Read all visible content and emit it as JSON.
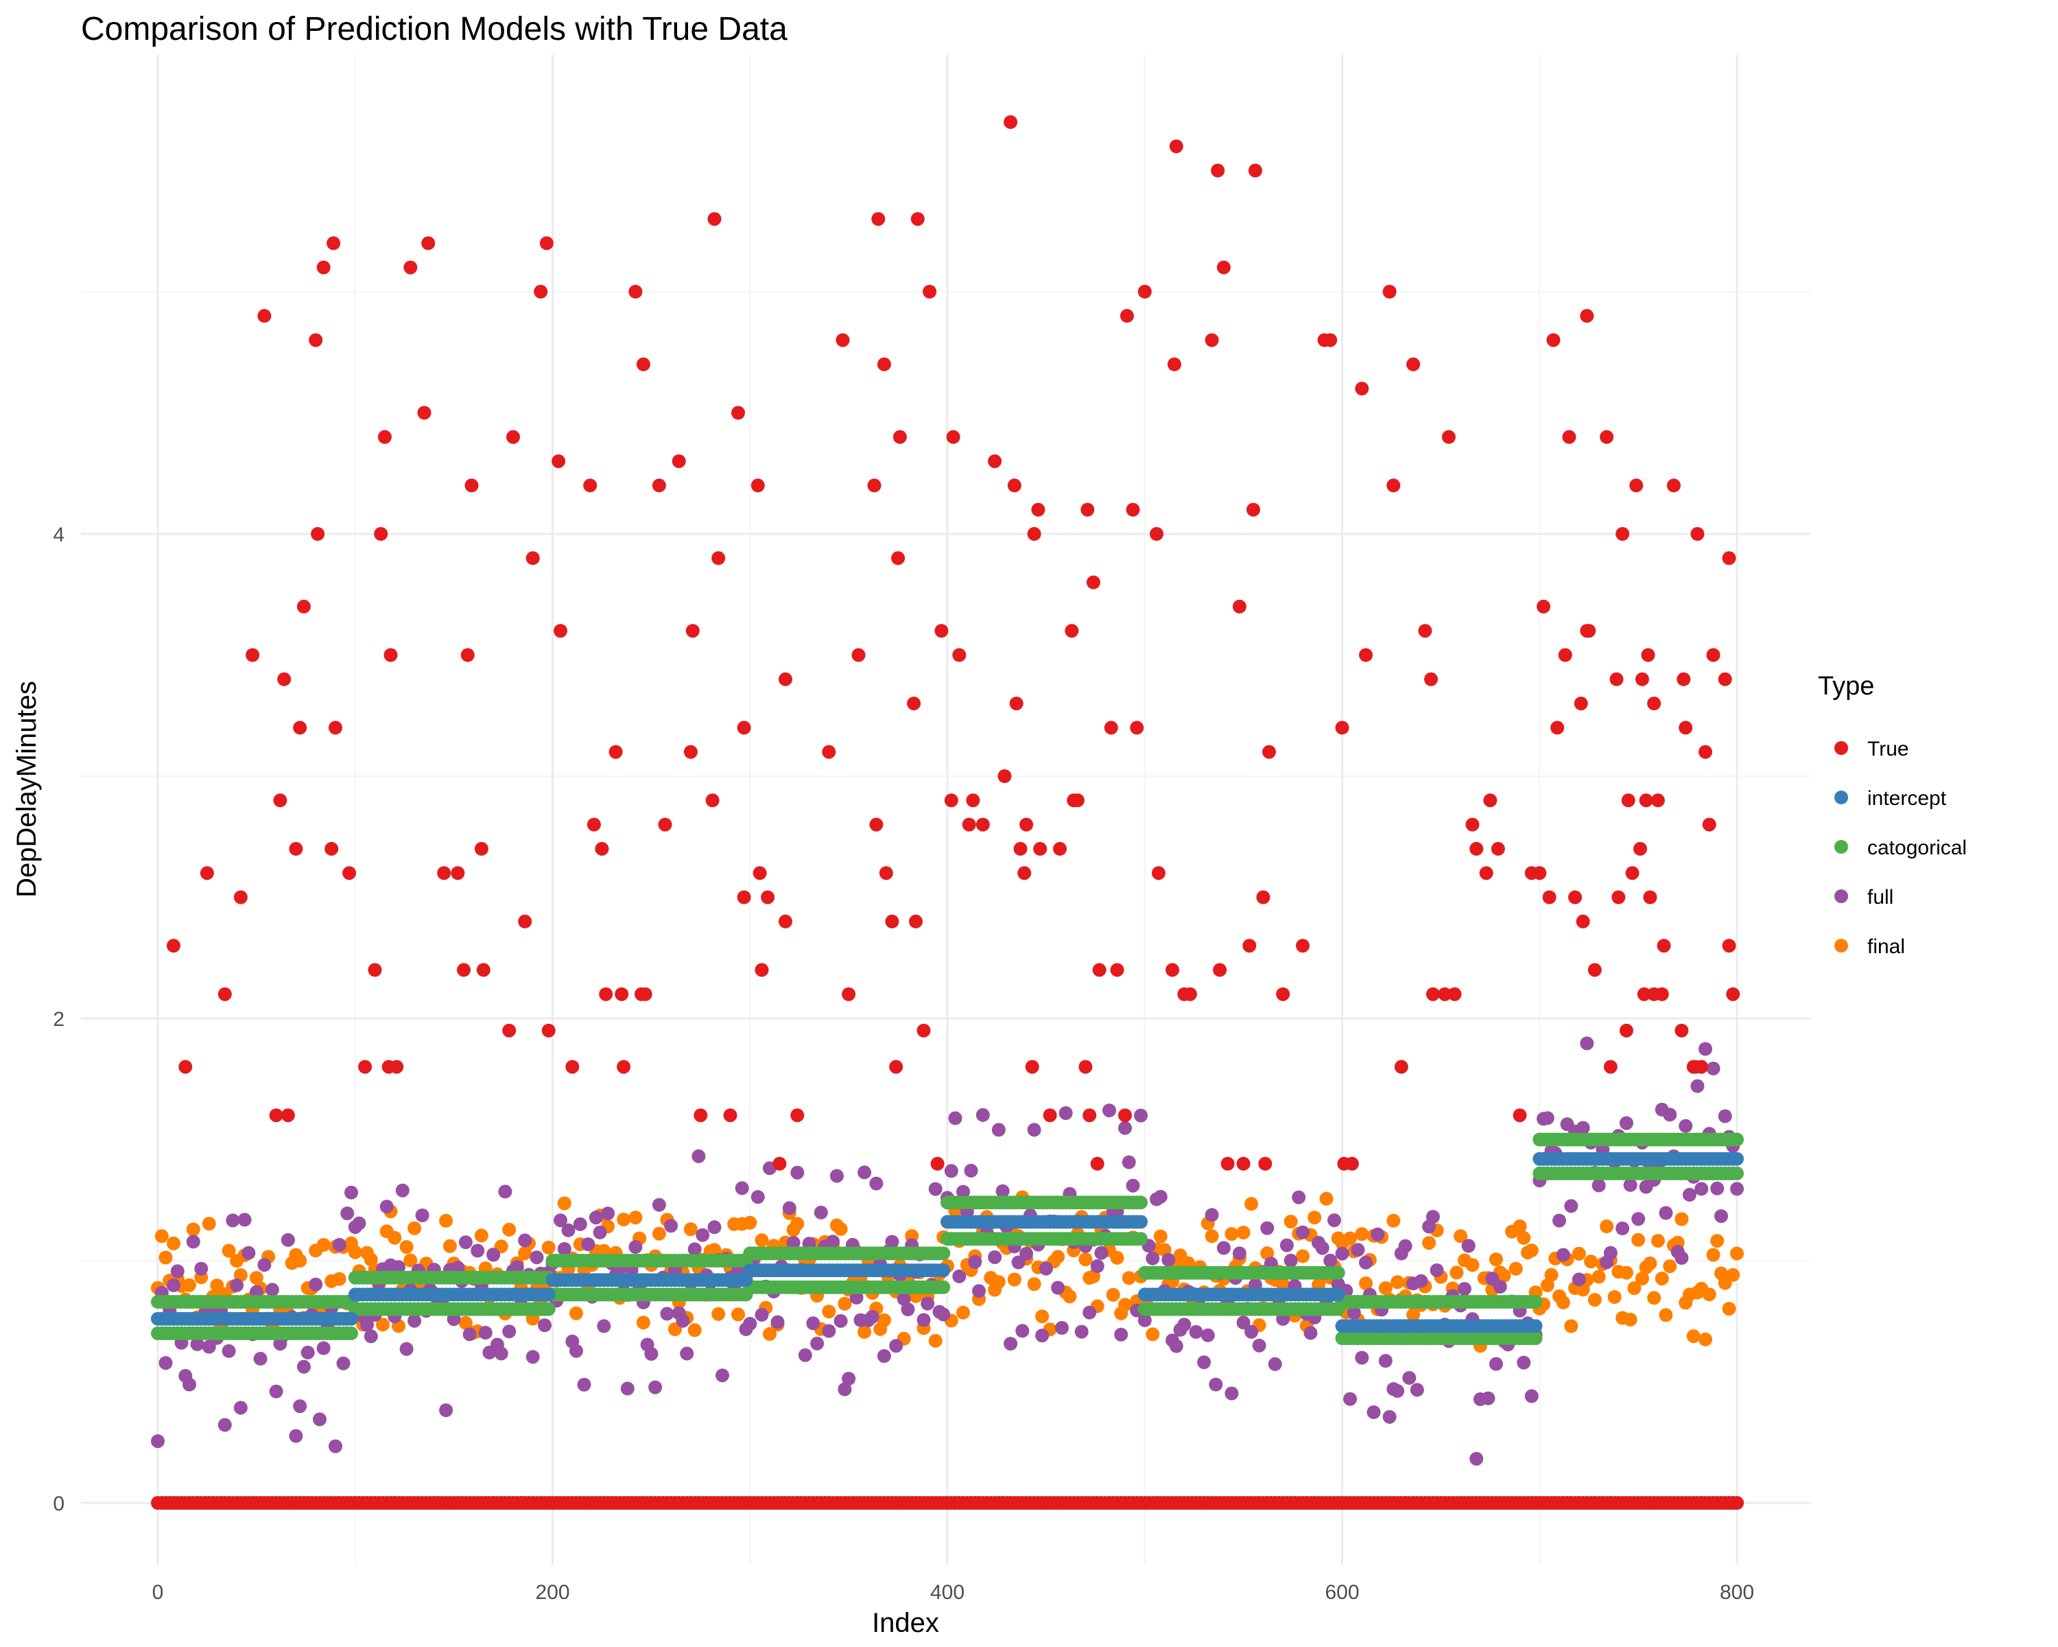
{
  "chart_data": {
    "type": "scatter",
    "title": "Comparison of Prediction Models with True Data",
    "xlabel": "Index",
    "ylabel": "DepDelayMinutes",
    "xlim": [
      -40,
      840
    ],
    "ylim": [
      -0.3,
      6.0
    ],
    "x_ticks": [
      0,
      200,
      400,
      600,
      800
    ],
    "y_ticks": [
      0,
      2,
      4
    ],
    "grid": true,
    "legend": {
      "title": "Type",
      "position": "right",
      "entries": [
        {
          "name": "True",
          "color": "#E41A1C"
        },
        {
          "name": "intercept",
          "color": "#377EB8"
        },
        {
          "name": "catogorical",
          "color": "#4DAF4A"
        },
        {
          "name": "full",
          "color": "#984EA3"
        },
        {
          "name": "final",
          "color": "#FF7F00"
        }
      ]
    },
    "series": [
      {
        "name": "True",
        "color": "#E41A1C",
        "zero_baseline": {
          "value": 0,
          "x_range": [
            0,
            800
          ],
          "step": 2
        },
        "points": [
          [
            8,
            2.3
          ],
          [
            14,
            1.8
          ],
          [
            25,
            2.6
          ],
          [
            34,
            2.1
          ],
          [
            42,
            2.5
          ],
          [
            48,
            3.5
          ],
          [
            54,
            4.9
          ],
          [
            60,
            1.6
          ],
          [
            62,
            2.9
          ],
          [
            64,
            3.4
          ],
          [
            66,
            1.6
          ],
          [
            70,
            2.7
          ],
          [
            72,
            3.2
          ],
          [
            74,
            3.7
          ],
          [
            80,
            4.8
          ],
          [
            81,
            4.0
          ],
          [
            84,
            5.1
          ],
          [
            88,
            2.7
          ],
          [
            89,
            5.2
          ],
          [
            90,
            3.2
          ],
          [
            97,
            2.6
          ],
          [
            105,
            1.8
          ],
          [
            110,
            2.2
          ],
          [
            113,
            4.0
          ],
          [
            115,
            4.4
          ],
          [
            117,
            1.8
          ],
          [
            118,
            3.5
          ],
          [
            121,
            1.8
          ],
          [
            128,
            5.1
          ],
          [
            135,
            4.5
          ],
          [
            137,
            5.2
          ],
          [
            145,
            2.6
          ],
          [
            152,
            2.6
          ],
          [
            155,
            2.2
          ],
          [
            157,
            3.5
          ],
          [
            159,
            4.2
          ],
          [
            164,
            2.7
          ],
          [
            165,
            2.2
          ],
          [
            178,
            1.95
          ],
          [
            180,
            4.4
          ],
          [
            186,
            2.4
          ],
          [
            190,
            3.9
          ],
          [
            194,
            5.0
          ],
          [
            197,
            5.2
          ],
          [
            198,
            1.95
          ],
          [
            203,
            4.3
          ],
          [
            204,
            3.6
          ],
          [
            210,
            1.8
          ],
          [
            219,
            4.2
          ],
          [
            221,
            2.8
          ],
          [
            225,
            2.7
          ],
          [
            227,
            2.1
          ],
          [
            232,
            3.1
          ],
          [
            235,
            2.1
          ],
          [
            236,
            1.8
          ],
          [
            242,
            5.0
          ],
          [
            245,
            2.1
          ],
          [
            246,
            4.7
          ],
          [
            247,
            2.1
          ],
          [
            254,
            4.2
          ],
          [
            257,
            2.8
          ],
          [
            264,
            4.3
          ],
          [
            270,
            3.1
          ],
          [
            271,
            3.6
          ],
          [
            275,
            1.6
          ],
          [
            281,
            2.9
          ],
          [
            282,
            5.3
          ],
          [
            284,
            3.9
          ],
          [
            290,
            1.6
          ],
          [
            294,
            4.5
          ],
          [
            297,
            2.5
          ],
          [
            297,
            3.2
          ],
          [
            304,
            4.2
          ],
          [
            305,
            2.6
          ],
          [
            306,
            2.2
          ],
          [
            309,
            2.5
          ],
          [
            315,
            1.4
          ],
          [
            318,
            2.4
          ],
          [
            318,
            3.4
          ],
          [
            324,
            1.6
          ],
          [
            340,
            3.1
          ],
          [
            347,
            4.8
          ],
          [
            350,
            2.1
          ],
          [
            355,
            3.5
          ],
          [
            363,
            4.2
          ],
          [
            364,
            2.8
          ],
          [
            365,
            5.3
          ],
          [
            368,
            4.7
          ],
          [
            369,
            2.6
          ],
          [
            372,
            2.4
          ],
          [
            374,
            1.8
          ],
          [
            375,
            3.9
          ],
          [
            376,
            4.4
          ],
          [
            383,
            3.3
          ],
          [
            384,
            2.4
          ],
          [
            385,
            5.3
          ],
          [
            388,
            1.95
          ],
          [
            391,
            5.0
          ],
          [
            395,
            1.4
          ],
          [
            397,
            3.6
          ],
          [
            402,
            2.9
          ],
          [
            403,
            4.4
          ],
          [
            406,
            3.5
          ],
          [
            411,
            2.8
          ],
          [
            413,
            2.9
          ],
          [
            418,
            2.8
          ],
          [
            424,
            4.3
          ],
          [
            429,
            3.0
          ],
          [
            432,
            5.7
          ],
          [
            434,
            4.2
          ],
          [
            435,
            3.3
          ],
          [
            437,
            2.7
          ],
          [
            439,
            2.6
          ],
          [
            440,
            2.8
          ],
          [
            443,
            1.8
          ],
          [
            444,
            4.0
          ],
          [
            446,
            4.1
          ],
          [
            447,
            2.7
          ],
          [
            452,
            1.6
          ],
          [
            457,
            2.7
          ],
          [
            463,
            3.6
          ],
          [
            464,
            2.9
          ],
          [
            466,
            2.9
          ],
          [
            470,
            1.8
          ],
          [
            471,
            4.1
          ],
          [
            472,
            1.6
          ],
          [
            474,
            3.8
          ],
          [
            476,
            1.4
          ],
          [
            477,
            2.2
          ],
          [
            483,
            3.2
          ],
          [
            486,
            2.2
          ],
          [
            490,
            1.6
          ],
          [
            491,
            4.9
          ],
          [
            494,
            4.1
          ],
          [
            496,
            3.2
          ],
          [
            500,
            5.0
          ],
          [
            506,
            4.0
          ],
          [
            507,
            2.6
          ],
          [
            514,
            2.2
          ],
          [
            515,
            4.7
          ],
          [
            516,
            5.6
          ],
          [
            520,
            2.1
          ],
          [
            523,
            2.1
          ],
          [
            534,
            4.8
          ],
          [
            537,
            5.5
          ],
          [
            538,
            2.2
          ],
          [
            540,
            5.1
          ],
          [
            542,
            1.4
          ],
          [
            548,
            3.7
          ],
          [
            550,
            1.4
          ],
          [
            553,
            2.3
          ],
          [
            555,
            4.1
          ],
          [
            556,
            5.5
          ],
          [
            560,
            2.5
          ],
          [
            561,
            1.4
          ],
          [
            563,
            3.1
          ],
          [
            570,
            2.1
          ],
          [
            580,
            2.3
          ],
          [
            591,
            4.8
          ],
          [
            594,
            4.8
          ],
          [
            600,
            3.2
          ],
          [
            601,
            1.4
          ],
          [
            605,
            1.4
          ],
          [
            610,
            4.6
          ],
          [
            612,
            3.5
          ],
          [
            624,
            5.0
          ],
          [
            626,
            4.2
          ],
          [
            630,
            1.8
          ],
          [
            636,
            4.7
          ],
          [
            642,
            3.6
          ],
          [
            645,
            3.4
          ],
          [
            646,
            2.1
          ],
          [
            652,
            2.1
          ],
          [
            654,
            4.4
          ],
          [
            657,
            2.1
          ],
          [
            666,
            2.8
          ],
          [
            668,
            2.7
          ],
          [
            673,
            2.6
          ],
          [
            675,
            2.9
          ],
          [
            679,
            2.7
          ],
          [
            690,
            1.6
          ],
          [
            696,
            2.6
          ],
          [
            700,
            2.6
          ],
          [
            702,
            3.7
          ],
          [
            705,
            2.5
          ],
          [
            707,
            4.8
          ],
          [
            709,
            3.2
          ],
          [
            713,
            3.5
          ],
          [
            715,
            4.4
          ],
          [
            718,
            2.5
          ],
          [
            721,
            3.3
          ],
          [
            722,
            2.4
          ],
          [
            724,
            3.6
          ],
          [
            725,
            3.6
          ],
          [
            724,
            4.9
          ],
          [
            728,
            2.2
          ],
          [
            734,
            4.4
          ],
          [
            736,
            1.8
          ],
          [
            739,
            3.4
          ],
          [
            740,
            2.5
          ],
          [
            742,
            4.0
          ],
          [
            744,
            1.95
          ],
          [
            745,
            2.9
          ],
          [
            747,
            2.6
          ],
          [
            749,
            4.2
          ],
          [
            751,
            2.7
          ],
          [
            752,
            3.4
          ],
          [
            753,
            2.1
          ],
          [
            754,
            2.9
          ],
          [
            755,
            3.5
          ],
          [
            756,
            2.5
          ],
          [
            758,
            2.1
          ],
          [
            758,
            3.3
          ],
          [
            760,
            2.9
          ],
          [
            762,
            2.1
          ],
          [
            763,
            2.3
          ],
          [
            768,
            4.2
          ],
          [
            772,
            1.95
          ],
          [
            773,
            3.4
          ],
          [
            774,
            3.2
          ],
          [
            778,
            1.8
          ],
          [
            779,
            1.8
          ],
          [
            780,
            4.0
          ],
          [
            782,
            1.8
          ],
          [
            784,
            3.1
          ],
          [
            786,
            2.8
          ],
          [
            788,
            3.5
          ],
          [
            794,
            3.4
          ],
          [
            796,
            2.3
          ],
          [
            796,
            3.9
          ],
          [
            798,
            2.1
          ]
        ]
      },
      {
        "name": "intercept",
        "color": "#377EB8",
        "step": 2,
        "segments": [
          {
            "x_range": [
              0,
              99
            ],
            "value": 0.76
          },
          {
            "x_range": [
              100,
              199
            ],
            "value": 0.86
          },
          {
            "x_range": [
              200,
              299
            ],
            "value": 0.92
          },
          {
            "x_range": [
              300,
              399
            ],
            "value": 0.96
          },
          {
            "x_range": [
              400,
              499
            ],
            "value": 1.16
          },
          {
            "x_range": [
              500,
              599
            ],
            "value": 0.86
          },
          {
            "x_range": [
              600,
              699
            ],
            "value": 0.73
          },
          {
            "x_range": [
              700,
              800
            ],
            "value": 1.42
          }
        ]
      },
      {
        "name": "catogorical",
        "color": "#4DAF4A",
        "step": 2,
        "segments": [
          {
            "x_range": [
              0,
              99
            ],
            "values": [
              0.7,
              0.83
            ]
          },
          {
            "x_range": [
              100,
              199
            ],
            "values": [
              0.8,
              0.93
            ]
          },
          {
            "x_range": [
              200,
              299
            ],
            "values": [
              0.86,
              1.0
            ]
          },
          {
            "x_range": [
              300,
              399
            ],
            "values": [
              0.89,
              1.03
            ]
          },
          {
            "x_range": [
              400,
              499
            ],
            "values": [
              1.09,
              1.24
            ]
          },
          {
            "x_range": [
              500,
              599
            ],
            "values": [
              0.8,
              0.95
            ]
          },
          {
            "x_range": [
              600,
              699
            ],
            "values": [
              0.68,
              0.83
            ]
          },
          {
            "x_range": [
              700,
              800
            ],
            "values": [
              1.36,
              1.5
            ]
          }
        ]
      },
      {
        "name": "full",
        "color": "#984EA3",
        "x_range": [
          0,
          800
        ],
        "step": 2,
        "level_by_group": [
          0.76,
          0.86,
          0.92,
          0.96,
          1.16,
          0.86,
          0.73,
          1.42
        ],
        "spread": 0.35
      },
      {
        "name": "final",
        "color": "#FF7F00",
        "x_range": [
          0,
          800
        ],
        "step": 2,
        "level_by_group": [
          0.9,
          0.95,
          0.96,
          0.95,
          0.98,
          0.95,
          0.9,
          0.97
        ],
        "spread": 0.2
      }
    ]
  }
}
